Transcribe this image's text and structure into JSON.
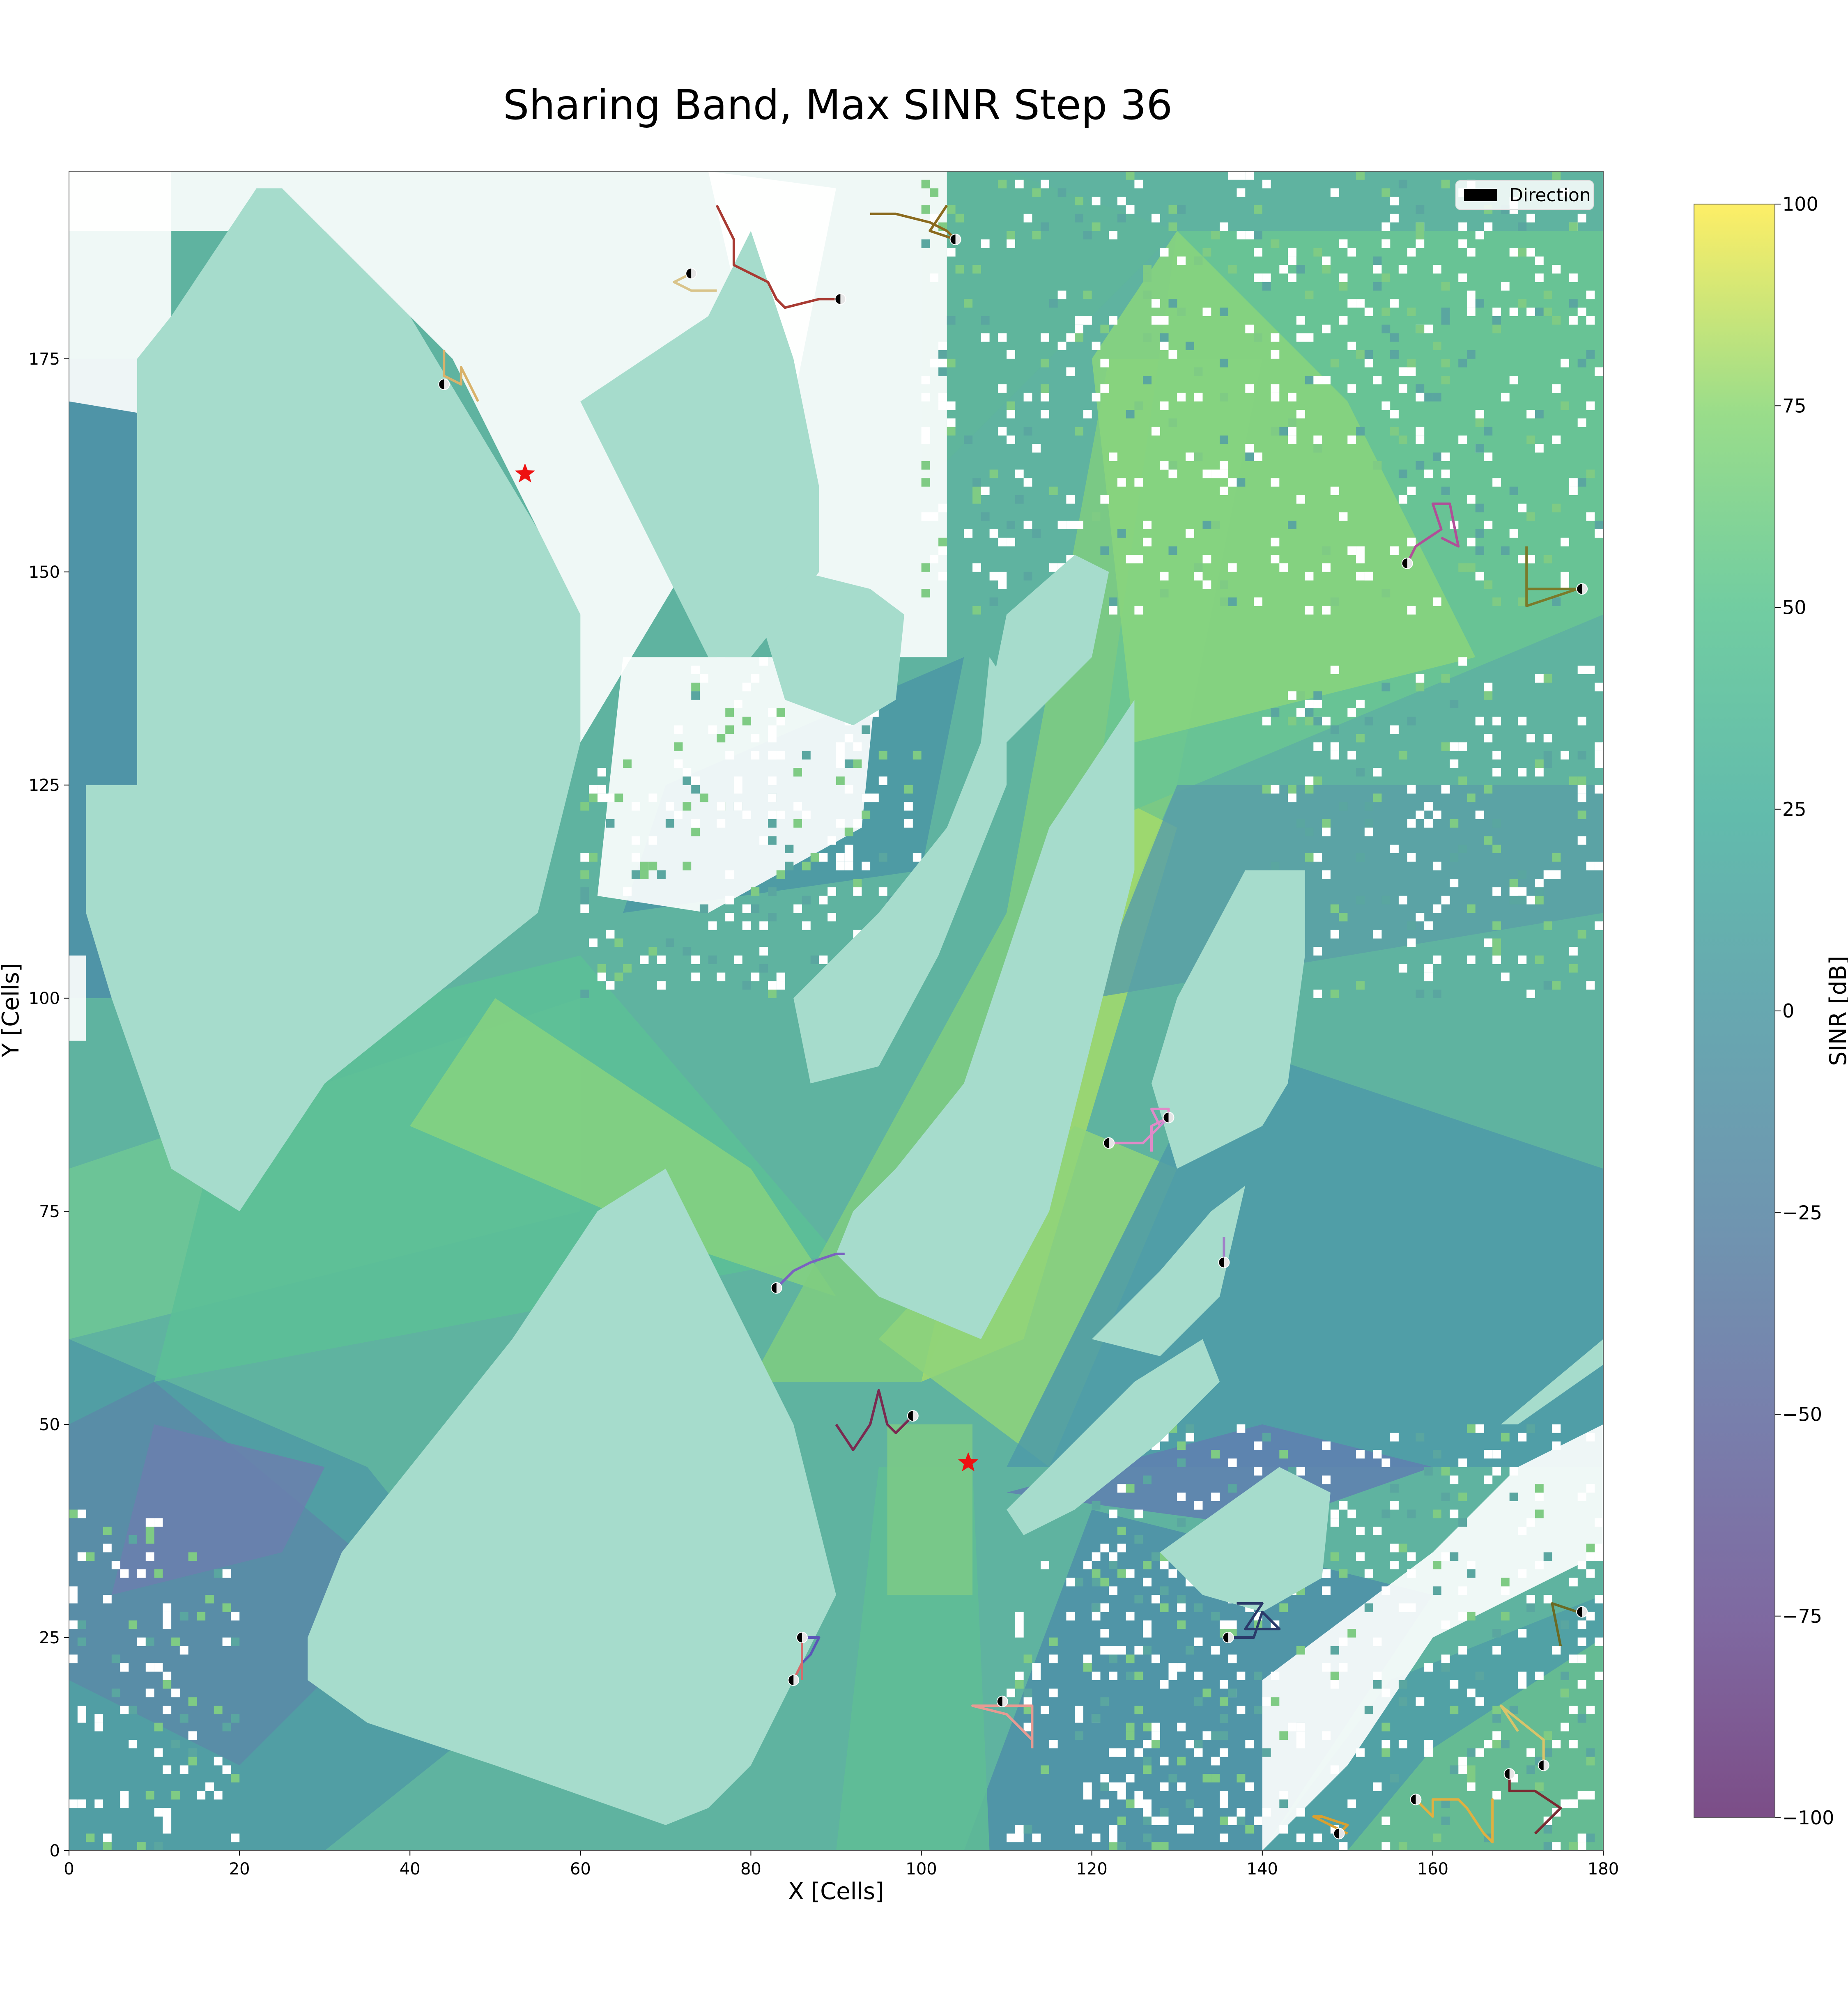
{
  "chart_data": {
    "type": "heatmap",
    "title": "Sharing Band, Max SINR Step 36",
    "xlabel": "X [Cells]",
    "ylabel": "Y [Cells]",
    "xlim": [
      0,
      180
    ],
    "ylim": [
      0,
      197
    ],
    "xticks": [
      "0",
      "20",
      "40",
      "60",
      "80",
      "100",
      "120",
      "140",
      "160",
      "180"
    ],
    "xtick_values": [
      0,
      20,
      40,
      60,
      80,
      100,
      120,
      140,
      160,
      180
    ],
    "yticks": [
      "0",
      "25",
      "50",
      "75",
      "100",
      "125",
      "150",
      "175"
    ],
    "ytick_values": [
      0,
      25,
      50,
      75,
      100,
      125,
      150,
      175
    ],
    "colorbar": {
      "label": "SINR [dB]",
      "range": [
        -100,
        100
      ],
      "ticks": [
        "100",
        "75",
        "50",
        "25",
        "0",
        "−25",
        "−50",
        "−75",
        "−100"
      ],
      "tick_values": [
        100,
        75,
        50,
        25,
        0,
        -25,
        -50,
        -75,
        -100
      ],
      "colormap": "viridis"
    },
    "legend": {
      "entries": [
        "Direction"
      ],
      "placement": "top-right"
    },
    "base_stations": [
      {
        "x": 53.5,
        "y": 161.5
      },
      {
        "x": 105.5,
        "y": 45.5
      }
    ],
    "users": [
      {
        "x": 44,
        "y": 172,
        "color": "#d9b26a",
        "trail": [
          [
            44,
            176
          ],
          [
            44,
            173
          ],
          [
            46,
            172
          ],
          [
            46,
            174
          ],
          [
            48,
            170
          ]
        ]
      },
      {
        "x": 73,
        "y": 185,
        "color": "#d9c48a",
        "trail": [
          [
            73,
            185
          ],
          [
            71,
            184
          ],
          [
            73,
            183
          ],
          [
            76,
            183
          ]
        ]
      },
      {
        "x": 90.5,
        "y": 182,
        "color": "#a83a32",
        "trail": [
          [
            76,
            193
          ],
          [
            78,
            189
          ],
          [
            78,
            186
          ],
          [
            82,
            184
          ],
          [
            83,
            182
          ],
          [
            84,
            181
          ],
          [
            88,
            182
          ],
          [
            90,
            182
          ]
        ]
      },
      {
        "x": 104,
        "y": 189,
        "color": "#8a6a1e",
        "trail": [
          [
            94,
            192
          ],
          [
            97,
            192
          ],
          [
            101,
            191
          ],
          [
            103,
            190
          ],
          [
            104,
            189
          ],
          [
            101,
            190
          ],
          [
            103,
            193
          ]
        ]
      },
      {
        "x": 157,
        "y": 151,
        "color": "#b04f98",
        "trail": [
          [
            157,
            151
          ],
          [
            158,
            153
          ],
          [
            161,
            155
          ],
          [
            160,
            158
          ],
          [
            162,
            158
          ],
          [
            163,
            153
          ],
          [
            161,
            154
          ]
        ]
      },
      {
        "x": 177.5,
        "y": 148,
        "color": "#7a7a2a",
        "trail": [
          [
            171,
            153
          ],
          [
            171,
            148
          ],
          [
            174,
            148
          ],
          [
            177,
            148
          ],
          [
            171,
            146
          ],
          [
            171,
            148
          ]
        ]
      },
      {
        "x": 122,
        "y": 83,
        "color": "#e08ac8",
        "trail": [
          [
            122,
            83
          ],
          [
            126,
            83
          ],
          [
            128,
            85
          ],
          [
            127,
            87
          ],
          [
            129,
            87
          ],
          [
            129,
            86
          ],
          [
            127,
            85
          ],
          [
            127,
            82
          ]
        ]
      },
      {
        "x": 129,
        "y": 86,
        "color": "#d08ad0",
        "trail": [
          [
            129,
            86
          ],
          [
            128,
            85
          ]
        ]
      },
      {
        "x": 135.5,
        "y": 69,
        "color": "#a080c8",
        "trail": [
          [
            135.5,
            69
          ],
          [
            135.5,
            72
          ]
        ]
      },
      {
        "x": 83,
        "y": 66,
        "color": "#7a62c0",
        "trail": [
          [
            83,
            66
          ],
          [
            85,
            68
          ],
          [
            87,
            69
          ],
          [
            90,
            70
          ],
          [
            91,
            70
          ]
        ]
      },
      {
        "x": 99,
        "y": 51,
        "color": "#7a2a50",
        "trail": [
          [
            90,
            50
          ],
          [
            92,
            47
          ],
          [
            94,
            50
          ],
          [
            95,
            54
          ],
          [
            96,
            50
          ],
          [
            97,
            49
          ],
          [
            99,
            51
          ]
        ]
      },
      {
        "x": 86,
        "y": 25,
        "color": "#5a56b8",
        "trail": [
          [
            86,
            25
          ],
          [
            88,
            25
          ],
          [
            87,
            23
          ],
          [
            86,
            22
          ]
        ]
      },
      {
        "x": 85,
        "y": 20,
        "color": "#d86a6a",
        "trail": [
          [
            85,
            20
          ],
          [
            86,
            22
          ],
          [
            86,
            25
          ],
          [
            86,
            20
          ]
        ]
      },
      {
        "x": 109.5,
        "y": 17.5,
        "color": "#e89a92",
        "trail": [
          [
            113,
            13
          ],
          [
            111,
            15
          ],
          [
            110,
            16
          ],
          [
            106,
            17
          ],
          [
            110,
            17
          ],
          [
            113,
            17
          ],
          [
            113,
            12
          ]
        ]
      },
      {
        "x": 136,
        "y": 25,
        "color": "#2a3a6a",
        "trail": [
          [
            136,
            25
          ],
          [
            139,
            25
          ],
          [
            140,
            28
          ],
          [
            142,
            26
          ],
          [
            138,
            26
          ],
          [
            140,
            29
          ],
          [
            137,
            29
          ]
        ]
      },
      {
        "x": 177.5,
        "y": 28,
        "color": "#6a6a24",
        "trail": [
          [
            175,
            24
          ],
          [
            174,
            29
          ],
          [
            177,
            28
          ]
        ]
      },
      {
        "x": 173,
        "y": 10,
        "color": "#d8c46a",
        "trail": [
          [
            173,
            10
          ],
          [
            173,
            13
          ],
          [
            168,
            17
          ],
          [
            170,
            14
          ]
        ]
      },
      {
        "x": 169,
        "y": 9,
        "color": "#7a2a32",
        "trail": [
          [
            169,
            9
          ],
          [
            169,
            7
          ],
          [
            172,
            7
          ],
          [
            175,
            5
          ],
          [
            173,
            3
          ],
          [
            172,
            2
          ]
        ]
      },
      {
        "x": 158,
        "y": 6,
        "color": "#e0b040",
        "trail": [
          [
            158,
            6
          ],
          [
            159,
            5
          ],
          [
            160,
            4
          ],
          [
            160,
            6
          ],
          [
            163,
            6
          ],
          [
            164,
            5
          ],
          [
            166,
            2
          ],
          [
            167,
            1
          ],
          [
            167,
            6
          ],
          [
            167,
            3
          ]
        ]
      },
      {
        "x": 149,
        "y": 2,
        "color": "#d8a030",
        "trail": [
          [
            149,
            2
          ],
          [
            150,
            3
          ],
          [
            147,
            4
          ],
          [
            146,
            4
          ],
          [
            148,
            3
          ],
          [
            150,
            2
          ]
        ]
      }
    ]
  }
}
